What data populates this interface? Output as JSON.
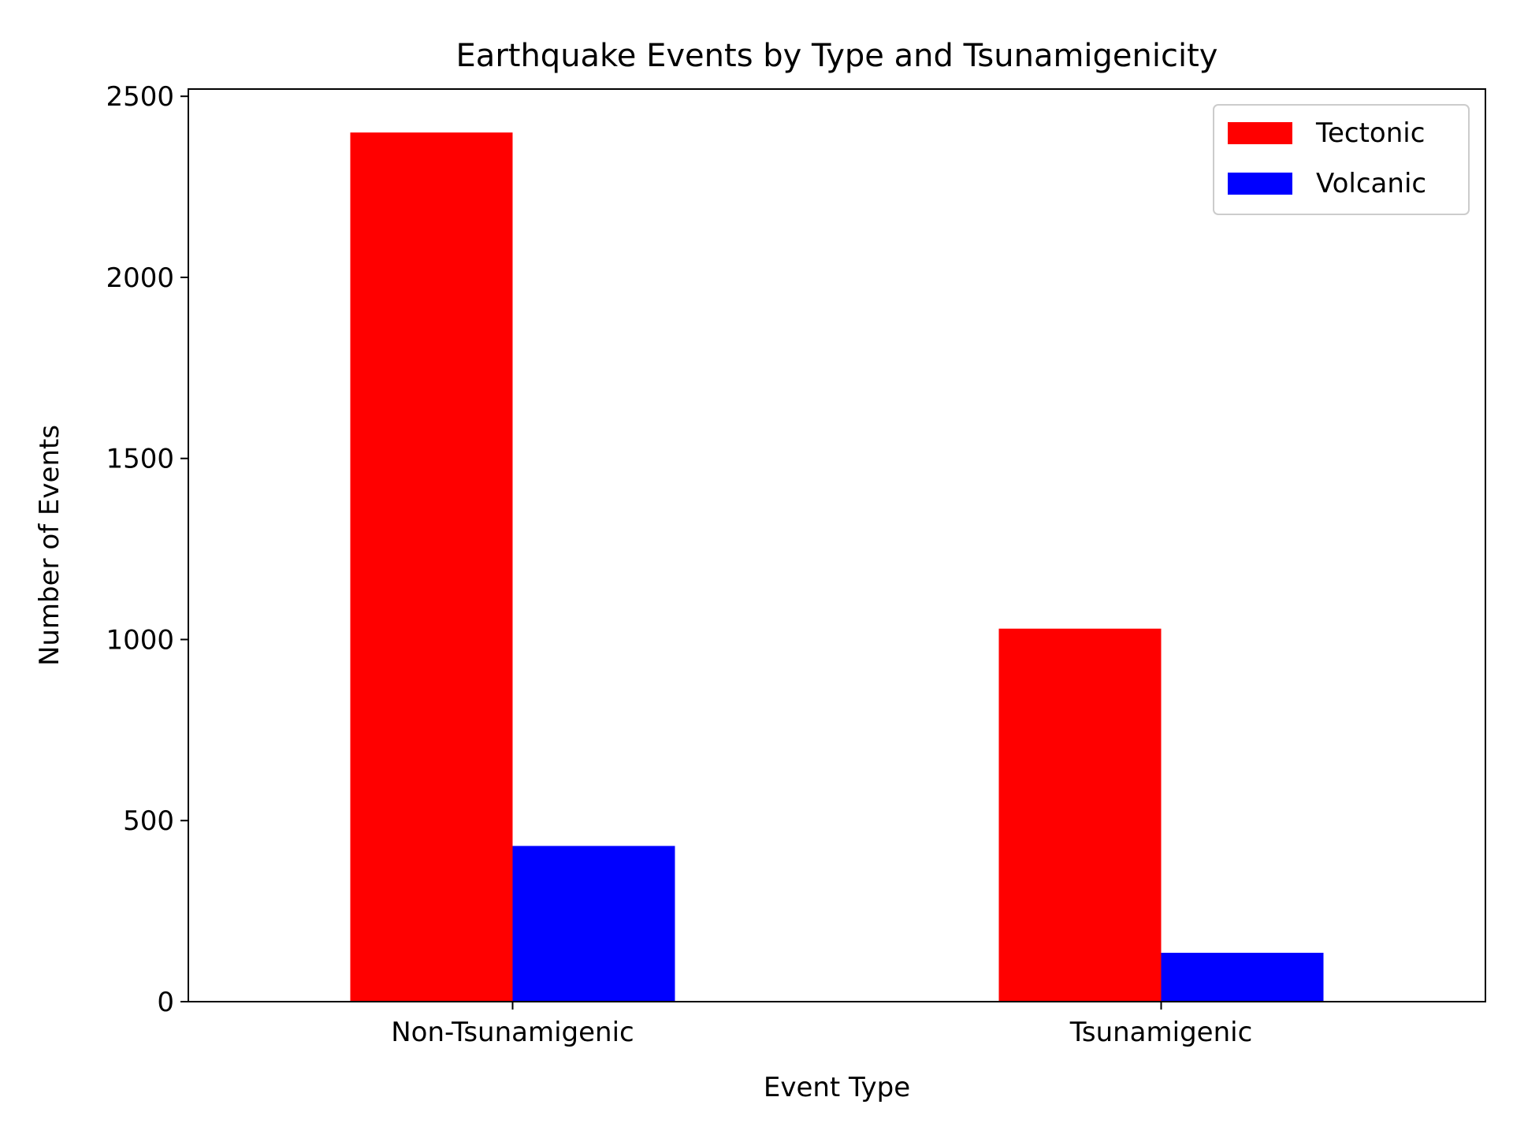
{
  "chart_data": {
    "type": "bar",
    "title": "Earthquake Events by Type and Tsunamigenicity",
    "xlabel": "Event Type",
    "ylabel": "Number of Events",
    "categories": [
      "Non-Tsunamigenic",
      "Tsunamigenic"
    ],
    "series": [
      {
        "name": "Tectonic",
        "color": "#ff0000",
        "values": [
          2400,
          1030
        ]
      },
      {
        "name": "Volcanic",
        "color": "#0000ff",
        "values": [
          430,
          135
        ]
      }
    ],
    "ylim": [
      0,
      2520
    ],
    "yticks": [
      0,
      500,
      1000,
      1500,
      2000,
      2500
    ],
    "grid": false,
    "legend_position": "top-right"
  }
}
